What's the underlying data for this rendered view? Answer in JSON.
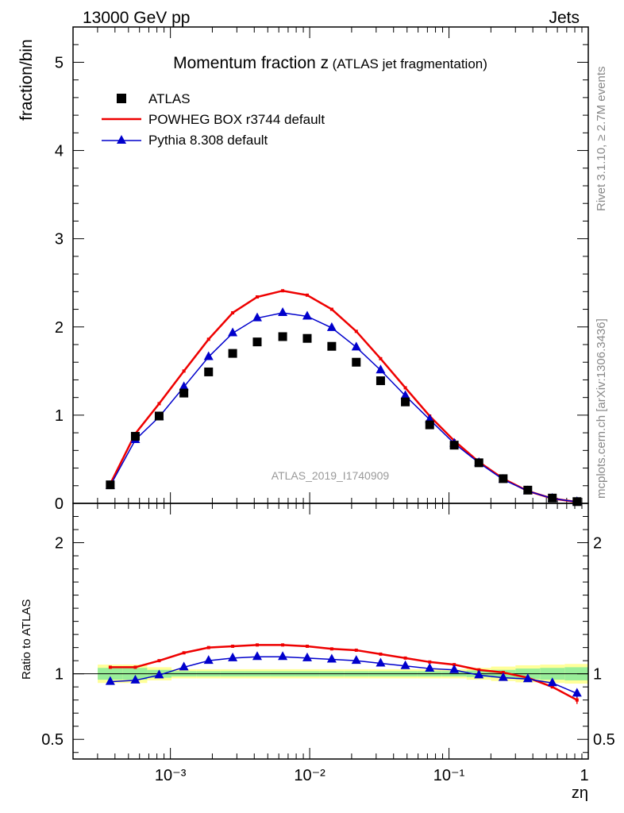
{
  "header": {
    "left": "13000 GeV pp",
    "right": "Jets"
  },
  "side_text": {
    "rivet": "Rivet 3.1.10, ≥ 2.7M events",
    "mcplots": "mcplots.cern.ch [arXiv:1306.3436]"
  },
  "colors": {
    "data": "#000000",
    "powheg": "#ee0000",
    "pythia": "#0000cc",
    "band_inner": "#99ee99",
    "band_outer": "#ffff99",
    "watermark": "#999999"
  },
  "chart_data": [
    {
      "type": "line",
      "title": "Momentum fraction z",
      "title_suffix": "(ATLAS jet fragmentation)",
      "ylabel": "fraction/bin",
      "watermark": "ATLAS_2019_I1740909",
      "x_scale": "log",
      "xlim": [
        0.0002,
        1.0
      ],
      "ylim": [
        0,
        5.4
      ],
      "y_ticks": [
        0,
        1,
        2,
        3,
        4,
        5
      ],
      "y_tick_labels": [
        "0",
        "1",
        "2",
        "3",
        "4",
        "5"
      ],
      "legend_position": "top-left",
      "x": [
        0.00037,
        0.00056,
        0.00083,
        0.00125,
        0.00188,
        0.0028,
        0.0042,
        0.0064,
        0.0096,
        0.0144,
        0.0216,
        0.0323,
        0.0486,
        0.0727,
        0.109,
        0.164,
        0.245,
        0.368,
        0.552,
        0.83
      ],
      "series": [
        {
          "name": "ATLAS",
          "style": "markers-square",
          "values": [
            0.21,
            0.76,
            0.99,
            1.25,
            1.49,
            1.7,
            1.83,
            1.89,
            1.87,
            1.78,
            1.6,
            1.39,
            1.15,
            0.89,
            0.66,
            0.46,
            0.28,
            0.15,
            0.06,
            0.02
          ]
        },
        {
          "name": "POWHEG BOX r3744 default",
          "style": "line",
          "values": [
            0.22,
            0.79,
            1.13,
            1.5,
            1.86,
            2.16,
            2.34,
            2.41,
            2.36,
            2.2,
            1.95,
            1.64,
            1.31,
            0.99,
            0.71,
            0.47,
            0.28,
            0.14,
            0.055,
            0.016
          ]
        },
        {
          "name": "Pythia 8.308 default",
          "style": "line-triangles",
          "values": [
            0.2,
            0.72,
            0.98,
            1.32,
            1.66,
            1.93,
            2.1,
            2.16,
            2.12,
            1.99,
            1.77,
            1.51,
            1.22,
            0.95,
            0.68,
            0.46,
            0.27,
            0.14,
            0.055,
            0.017
          ]
        }
      ]
    },
    {
      "type": "line",
      "ylabel": "Ratio to ATLAS",
      "xlabel": "zη",
      "x_scale": "log",
      "xlim": [
        0.0002,
        1.0
      ],
      "ylim": [
        0.35,
        2.3
      ],
      "y_ticks": [
        0.5,
        1,
        2
      ],
      "y_tick_labels": [
        "0.5",
        "1",
        "2"
      ],
      "x_tick_labels": [
        "10⁻³",
        "10⁻²",
        "10⁻¹",
        "1"
      ],
      "x_ticks": [
        0.001,
        0.01,
        0.1,
        1
      ],
      "x": [
        0.00037,
        0.00056,
        0.00083,
        0.00125,
        0.00188,
        0.0028,
        0.0042,
        0.0064,
        0.0096,
        0.0144,
        0.0216,
        0.0323,
        0.0486,
        0.0727,
        0.109,
        0.164,
        0.245,
        0.368,
        0.552,
        0.83
      ],
      "band_inner": [
        0.045,
        0.045,
        0.03,
        0.02,
        0.02,
        0.02,
        0.02,
        0.02,
        0.02,
        0.02,
        0.02,
        0.02,
        0.02,
        0.02,
        0.02,
        0.025,
        0.03,
        0.04,
        0.045,
        0.05
      ],
      "band_outer": [
        0.07,
        0.07,
        0.05,
        0.035,
        0.035,
        0.035,
        0.035,
        0.035,
        0.035,
        0.035,
        0.035,
        0.035,
        0.035,
        0.035,
        0.035,
        0.045,
        0.055,
        0.065,
        0.07,
        0.075
      ],
      "series": [
        {
          "name": "POWHEG BOX r3744 default",
          "values": [
            1.05,
            1.05,
            1.1,
            1.16,
            1.2,
            1.21,
            1.22,
            1.22,
            1.21,
            1.19,
            1.18,
            1.15,
            1.12,
            1.09,
            1.07,
            1.03,
            1.01,
            0.97,
            0.9,
            0.8
          ]
        },
        {
          "name": "Pythia 8.308 default",
          "values": [
            0.94,
            0.95,
            0.99,
            1.05,
            1.1,
            1.12,
            1.13,
            1.13,
            1.12,
            1.11,
            1.1,
            1.08,
            1.06,
            1.04,
            1.03,
            0.99,
            0.97,
            0.96,
            0.93,
            0.85
          ]
        }
      ]
    }
  ]
}
